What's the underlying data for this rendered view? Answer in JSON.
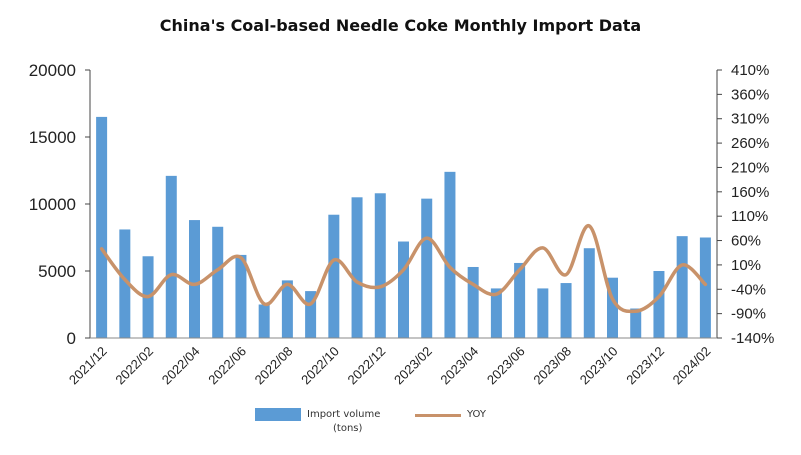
{
  "chart_data": {
    "type": "bar",
    "title": "China's Coal-based Needle Coke Monthly Import Data",
    "x": [
      "2021/12",
      "2022/01",
      "2022/02",
      "2022/03",
      "2022/04",
      "2022/05",
      "2022/06",
      "2022/07",
      "2022/08",
      "2022/09",
      "2022/10",
      "2022/11",
      "2022/12",
      "2023/01",
      "2023/02",
      "2023/03",
      "2023/04",
      "2023/05",
      "2023/06",
      "2023/07",
      "2023/08",
      "2023/09",
      "2023/10",
      "2023/11",
      "2023/12",
      "2024/01",
      "2024/02"
    ],
    "tick_labels": [
      "2021/12",
      "2022/02",
      "2022/04",
      "2022/06",
      "2022/08",
      "2022/10",
      "2022/12",
      "2023/02",
      "2023/04",
      "2023/06",
      "2023/08",
      "2023/10",
      "2023/12",
      "2024/02"
    ],
    "series": [
      {
        "name": "Import volume\n(tons)",
        "axis": "left",
        "type": "bar",
        "values": [
          16500,
          8100,
          6100,
          12100,
          8800,
          8300,
          6200,
          2500,
          4300,
          3500,
          9200,
          10500,
          10800,
          7200,
          10400,
          12400,
          5300,
          3700,
          5600,
          3700,
          4100,
          6700,
          4500,
          2200,
          5000,
          7600,
          7500
        ]
      },
      {
        "name": "YOY",
        "axis": "right",
        "type": "line",
        "values": [
          43,
          -20,
          -55,
          -10,
          -30,
          0,
          25,
          -70,
          -30,
          -70,
          20,
          -25,
          -35,
          0,
          65,
          5,
          -30,
          -50,
          0,
          45,
          -10,
          90,
          -60,
          -85,
          -55,
          10,
          -30
        ]
      }
    ],
    "left_axis": {
      "min": 0,
      "max": 20000,
      "ticks": [
        "0",
        "5000",
        "10000",
        "15000",
        "20000"
      ]
    },
    "right_axis": {
      "min": -140,
      "max": 410,
      "ticks": [
        "-140%",
        "-90%",
        "-40%",
        "10%",
        "60%",
        "110%",
        "160%",
        "210%",
        "260%",
        "310%",
        "360%",
        "410%"
      ]
    },
    "grid": false,
    "legend_position": "bottom",
    "colors": {
      "bar": "#5b9bd5",
      "line": "#c8926a"
    }
  }
}
